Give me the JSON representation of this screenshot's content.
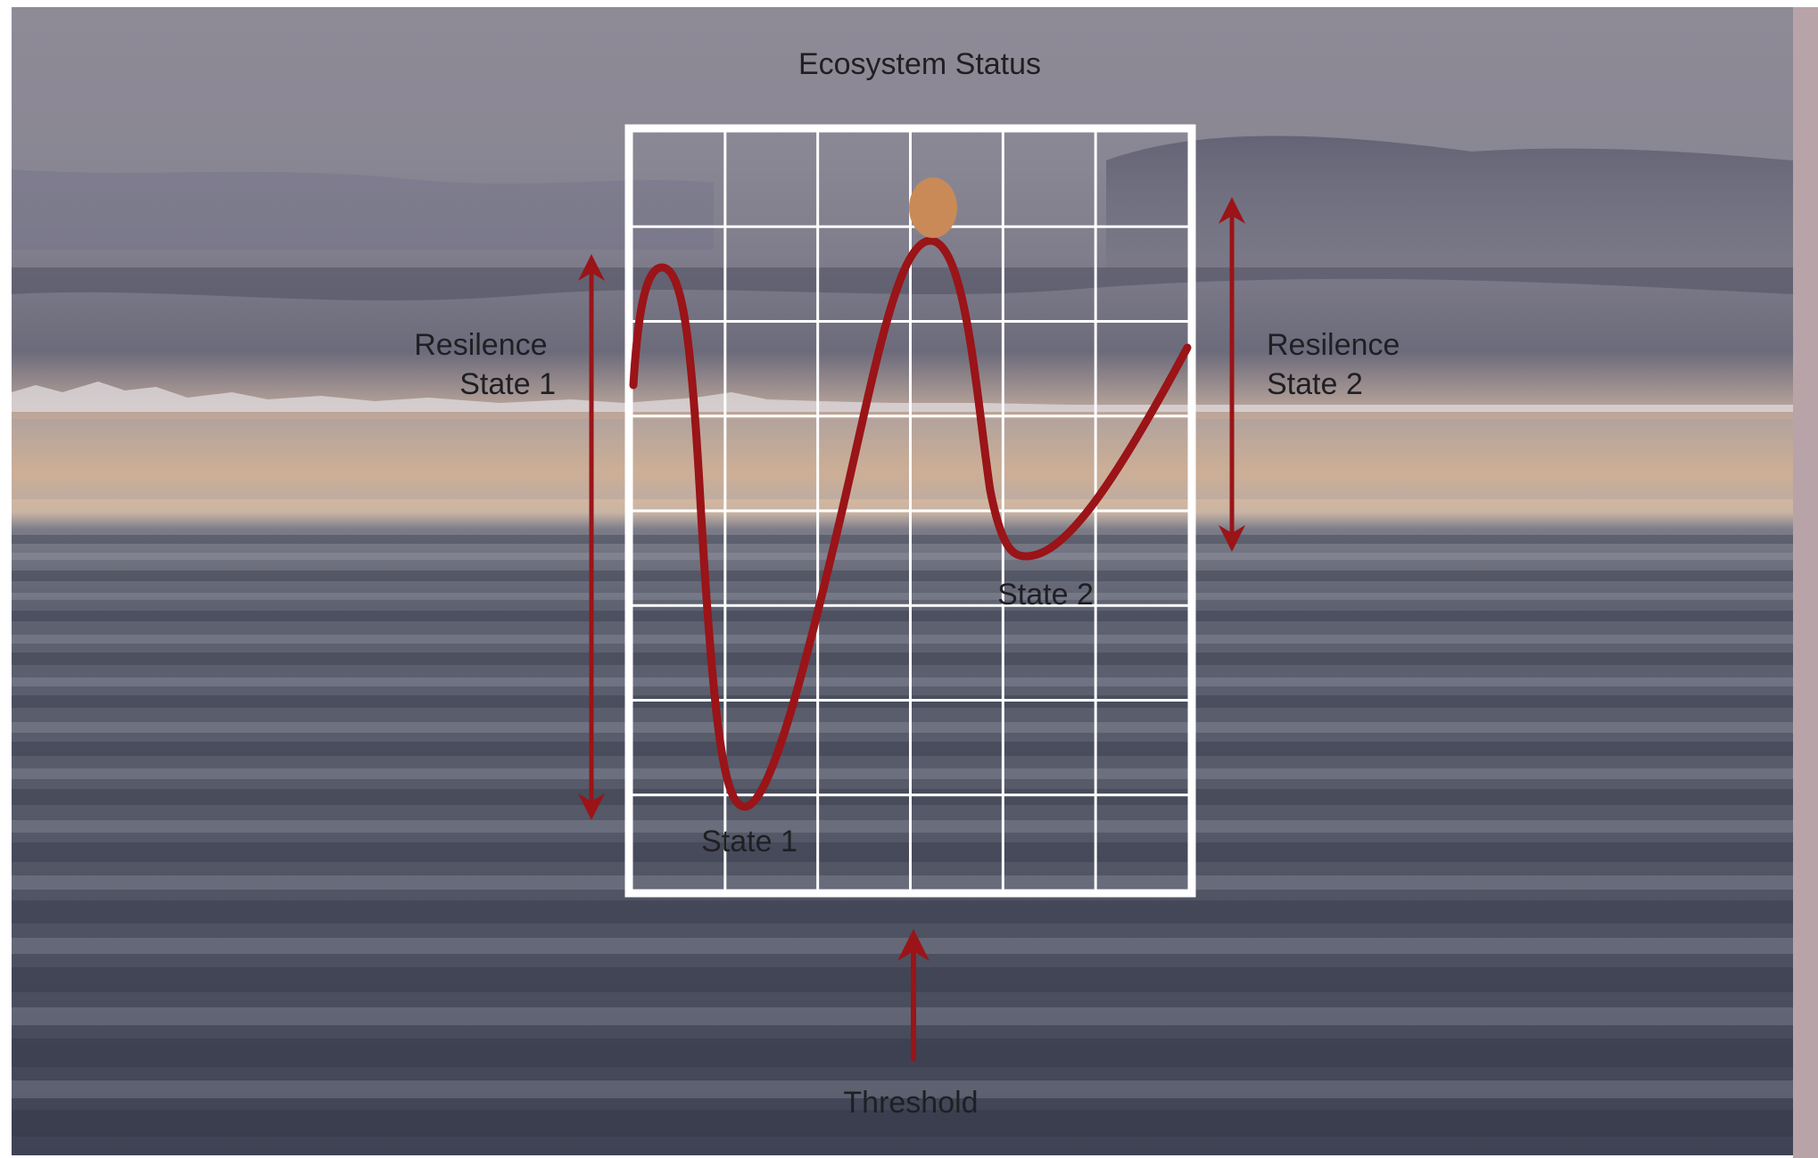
{
  "diagram": {
    "title": "Ecosystem Status",
    "left_label": {
      "line1": "Resilence",
      "line2": "State 1"
    },
    "right_label": {
      "line1": "Resilence",
      "line2": "State 2"
    },
    "state1_label": "State 1",
    "state2_label": "State 2",
    "threshold_label": "Threshold",
    "grid": {
      "columns": 6,
      "rows": 8
    }
  },
  "colors": {
    "curve": "#9a1418",
    "arrow": "#9a1418",
    "ball": "#c98a57",
    "grid_line": "#ffffff",
    "text": "#1f1f24"
  }
}
